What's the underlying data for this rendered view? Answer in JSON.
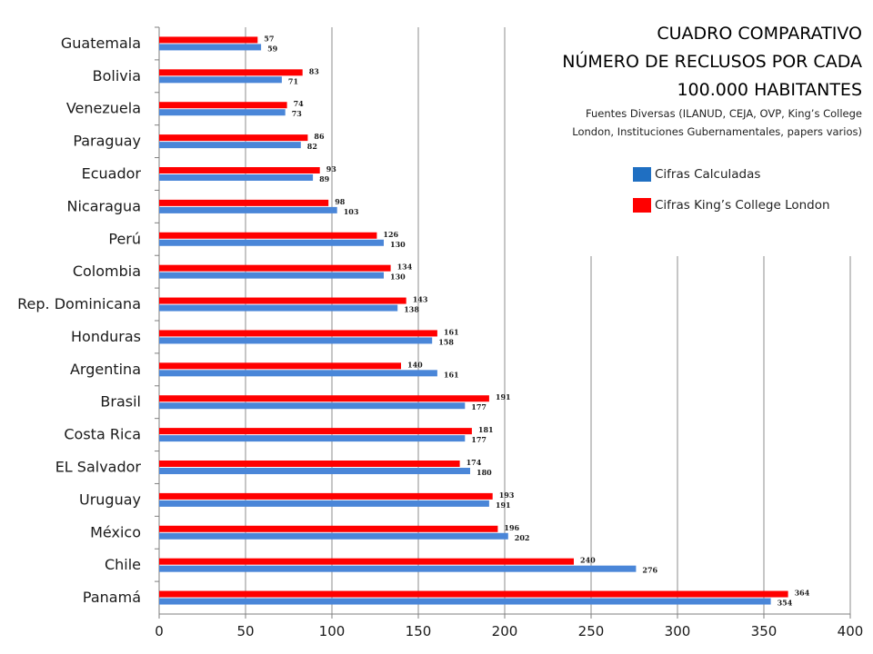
{
  "chart_data": {
    "type": "bar",
    "orientation": "horizontal",
    "title": [
      "CUADRO COMPARATIVO",
      "NÚMERO DE RECLUSOS POR CADA",
      "100.000 HABITANTES"
    ],
    "subtitle": [
      "Fuentes Diversas (ILANUD, CEJA, OVP, King’s College",
      "London, Instituciones Gubernamentales, papers varios)"
    ],
    "categories": [
      "Guatemala",
      "Bolivia",
      "Venezuela",
      "Paraguay",
      "Ecuador",
      "Nicaragua",
      "Perú",
      "Colombia",
      "Rep. Dominicana",
      "Honduras",
      "Argentina",
      "Brasil",
      "Costa Rica",
      "EL Salvador",
      "Uruguay",
      "México",
      "Chile",
      "Panamá"
    ],
    "series": [
      {
        "name": "Cifras King’s College London",
        "color": "#ff0000",
        "values": [
          57,
          83,
          74,
          86,
          93,
          98,
          126,
          134,
          143,
          161,
          140,
          191,
          181,
          174,
          193,
          196,
          240,
          364
        ]
      },
      {
        "name": "Cifras Calculadas",
        "color": "#4a86d8",
        "values": [
          59,
          71,
          73,
          82,
          89,
          103,
          130,
          130,
          138,
          158,
          161,
          177,
          177,
          180,
          191,
          202,
          276,
          354
        ]
      }
    ],
    "legend_order": [
      "Cifras Calculadas",
      "Cifras King’s College London"
    ],
    "legend_colors": [
      "#1f6fc2",
      "#ff0000"
    ],
    "xlim": [
      0,
      400
    ],
    "xticks": [
      0,
      50,
      100,
      150,
      200,
      250,
      300,
      350,
      400
    ],
    "grid": true,
    "legend_position": "right"
  }
}
